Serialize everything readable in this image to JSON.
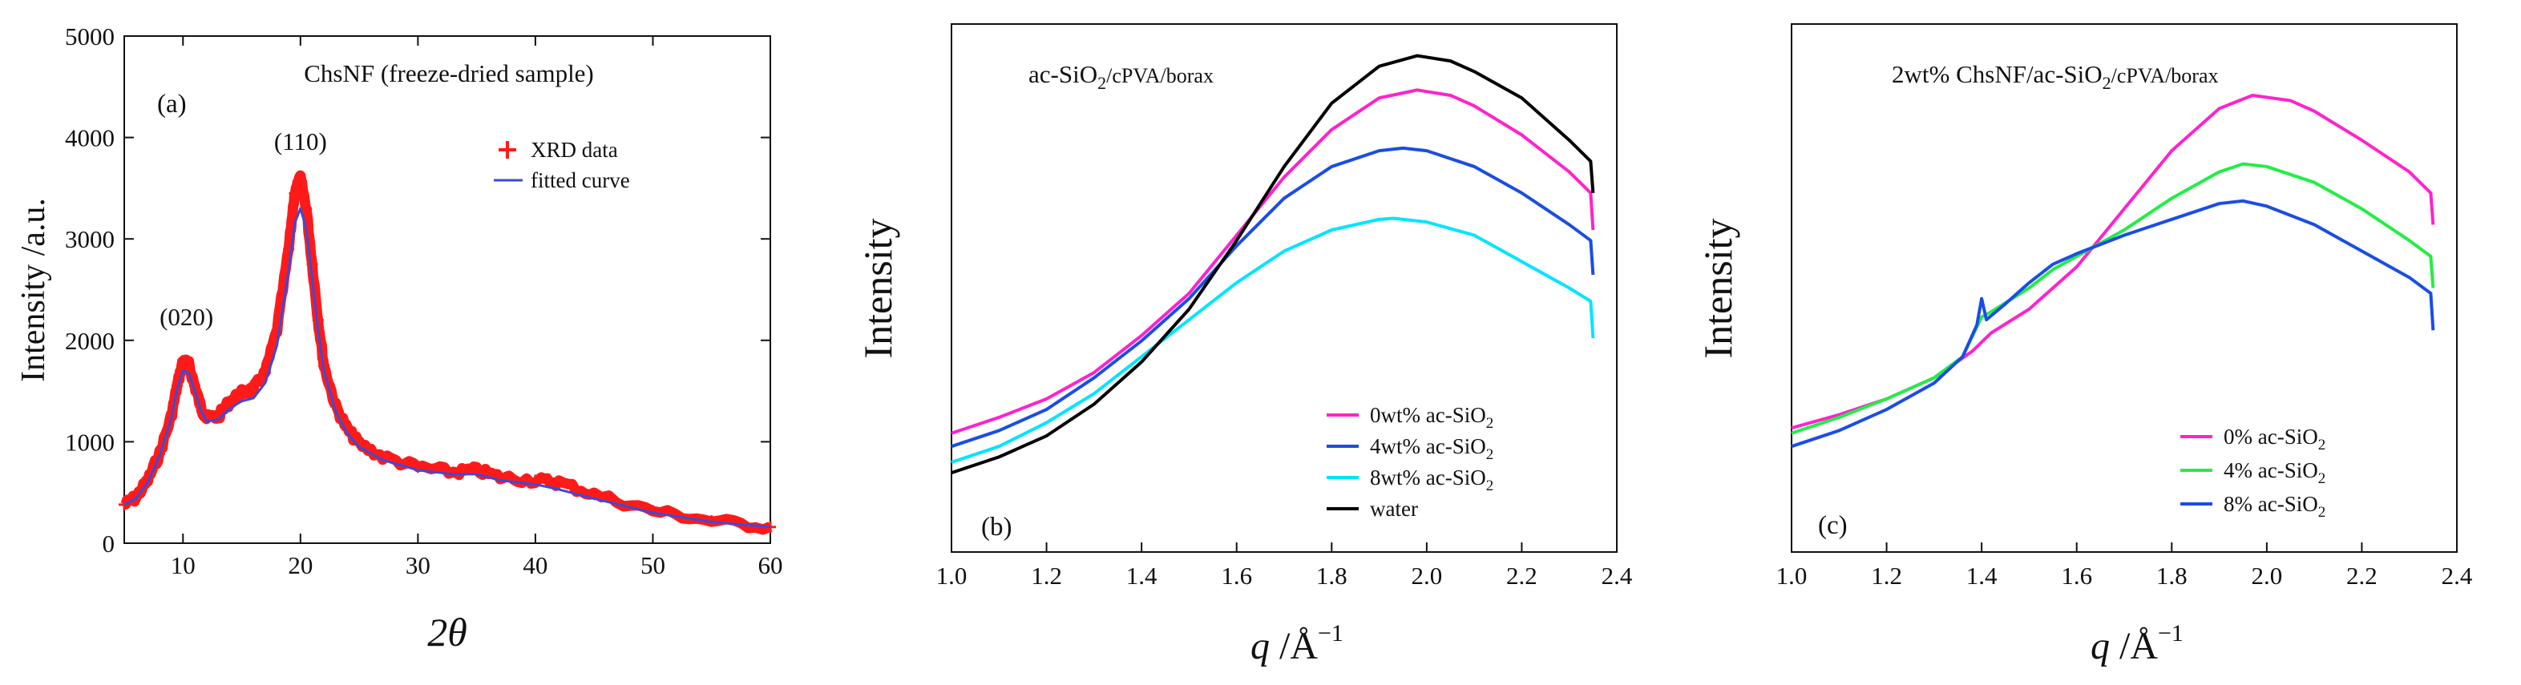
{
  "chart_data": [
    {
      "panel": "(a)",
      "type": "line",
      "title": "ChsNF (freeze-dried sample)",
      "xlabel_prefix": "2",
      "xlabel_symbol": "θ",
      "ylabel": "Intensity /a.u.",
      "xlim": [
        5,
        60
      ],
      "ylim": [
        0,
        5000
      ],
      "xticks": [
        10,
        20,
        30,
        40,
        50,
        60
      ],
      "xtick_labels": [
        "10",
        "20",
        "30",
        "40",
        "50",
        "60"
      ],
      "yticks": [
        0,
        1000,
        2000,
        3000,
        4000,
        5000
      ],
      "ytick_labels": [
        "0",
        "1000",
        "2000",
        "3000",
        "4000",
        "5000"
      ],
      "annotations": [
        {
          "text": "(020)",
          "x": 10.3,
          "y": 2150
        },
        {
          "text": "(110)",
          "x": 20.0,
          "y": 3880
        }
      ],
      "legend": {
        "position": "top-right",
        "entries": [
          "XRD data",
          "fitted curve"
        ]
      },
      "colors": {
        "data": "#ff1a1a",
        "fit": "#3b4bd6"
      },
      "series": [
        {
          "name": "XRD data",
          "marker": "+",
          "x": [
            5,
            6,
            7,
            8,
            9,
            9.5,
            10,
            10.5,
            11,
            11.5,
            12,
            13,
            14,
            15,
            16,
            17,
            18,
            19,
            19.5,
            20,
            20.5,
            21,
            21.5,
            22,
            23,
            24,
            25,
            27,
            30,
            33,
            35,
            37,
            40,
            42,
            45,
            50,
            55,
            60
          ],
          "y": [
            380,
            450,
            620,
            880,
            1250,
            1550,
            1800,
            1760,
            1550,
            1350,
            1230,
            1250,
            1400,
            1480,
            1520,
            1680,
            2100,
            2900,
            3450,
            3600,
            3300,
            2750,
            2200,
            1750,
            1350,
            1120,
            980,
            850,
            750,
            700,
            720,
            650,
            620,
            600,
            480,
            320,
            220,
            160
          ]
        },
        {
          "name": "fitted curve",
          "x": [
            5,
            6,
            7,
            8,
            9,
            9.5,
            10,
            10.5,
            11,
            11.5,
            12,
            13,
            14,
            15,
            16,
            17,
            18,
            19,
            19.5,
            20,
            20.5,
            21,
            21.5,
            22,
            23,
            24,
            25,
            27,
            30,
            33,
            35,
            37,
            40,
            42,
            45,
            50,
            55,
            60
          ],
          "y": [
            380,
            440,
            600,
            860,
            1230,
            1520,
            1700,
            1680,
            1500,
            1320,
            1200,
            1220,
            1330,
            1400,
            1430,
            1580,
            1950,
            2700,
            3150,
            3300,
            3100,
            2600,
            2100,
            1700,
            1300,
            1080,
            950,
            820,
            720,
            680,
            680,
            620,
            580,
            530,
            440,
            300,
            210,
            160
          ]
        }
      ]
    },
    {
      "panel": "(b)",
      "type": "line",
      "title_main": "ac-SiO",
      "title_sub": "2",
      "title_tail": "/cPVA/borax",
      "xlabel_q": "q",
      "xlabel_unit": " /Å",
      "xlabel_sup": "−1",
      "ylabel": "Intensity",
      "xlim": [
        1.0,
        2.4
      ],
      "xticks": [
        1.0,
        1.2,
        1.4,
        1.6,
        1.8,
        2.0,
        2.2,
        2.4
      ],
      "xtick_labels": [
        "1.0",
        "1.2",
        "1.4",
        "1.6",
        "1.8",
        "2.0",
        "2.2",
        "2.4"
      ],
      "legend": {
        "position": "bottom-right",
        "entries": [
          {
            "pre": "0wt% ac-SiO",
            "sub": "2"
          },
          {
            "pre": "4wt% ac-SiO",
            "sub": "2"
          },
          {
            "pre": "8wt% ac-SiO",
            "sub": "2"
          },
          {
            "pre": "water",
            "sub": ""
          }
        ]
      },
      "series": [
        {
          "name": "0wt% ac-SiO2",
          "color": "#ff22cc",
          "x": [
            1.0,
            1.1,
            1.2,
            1.3,
            1.4,
            1.5,
            1.6,
            1.7,
            1.8,
            1.9,
            1.98,
            2.05,
            2.1,
            2.2,
            2.3,
            2.345,
            2.35
          ],
          "y": [
            0.225,
            0.255,
            0.29,
            0.34,
            0.41,
            0.49,
            0.6,
            0.71,
            0.8,
            0.86,
            0.875,
            0.865,
            0.845,
            0.79,
            0.72,
            0.68,
            0.61
          ]
        },
        {
          "name": "4wt% ac-SiO2",
          "color": "#1a4de6",
          "x": [
            1.0,
            1.1,
            1.2,
            1.3,
            1.4,
            1.5,
            1.6,
            1.7,
            1.8,
            1.9,
            1.95,
            2.0,
            2.1,
            2.2,
            2.3,
            2.345,
            2.35
          ],
          "y": [
            0.2,
            0.23,
            0.27,
            0.33,
            0.4,
            0.48,
            0.58,
            0.67,
            0.73,
            0.76,
            0.765,
            0.76,
            0.73,
            0.68,
            0.62,
            0.59,
            0.525
          ]
        },
        {
          "name": "8wt% ac-SiO2",
          "color": "#00e5ff",
          "x": [
            1.0,
            1.1,
            1.2,
            1.3,
            1.4,
            1.5,
            1.6,
            1.7,
            1.8,
            1.9,
            1.93,
            2.0,
            2.1,
            2.2,
            2.3,
            2.345,
            2.35
          ],
          "y": [
            0.17,
            0.2,
            0.245,
            0.3,
            0.37,
            0.44,
            0.51,
            0.57,
            0.61,
            0.63,
            0.632,
            0.625,
            0.6,
            0.55,
            0.5,
            0.475,
            0.405
          ]
        },
        {
          "name": "water",
          "color": "#000000",
          "x": [
            1.0,
            1.1,
            1.2,
            1.3,
            1.4,
            1.5,
            1.6,
            1.7,
            1.8,
            1.9,
            1.98,
            2.05,
            2.1,
            2.2,
            2.3,
            2.345,
            2.35
          ],
          "y": [
            0.15,
            0.18,
            0.22,
            0.28,
            0.36,
            0.46,
            0.59,
            0.73,
            0.85,
            0.92,
            0.94,
            0.93,
            0.91,
            0.86,
            0.78,
            0.74,
            0.68
          ]
        }
      ]
    },
    {
      "panel": "(c)",
      "type": "line",
      "title_main": "2wt% ChsNF/ac-SiO",
      "title_sub": "2",
      "title_tail": "/cPVA/borax",
      "xlabel_q": "q",
      "xlabel_unit": " /Å",
      "xlabel_sup": "−1",
      "ylabel": "Intensity",
      "xlim": [
        1.0,
        2.4
      ],
      "xticks": [
        1.0,
        1.2,
        1.4,
        1.6,
        1.8,
        2.0,
        2.2,
        2.4
      ],
      "xtick_labels": [
        "1.0",
        "1.2",
        "1.4",
        "1.6",
        "1.8",
        "2.0",
        "2.2",
        "2.4"
      ],
      "legend": {
        "position": "bottom-right",
        "entries": [
          {
            "pre": "0% ac-SiO",
            "sub": "2"
          },
          {
            "pre": "4% ac-SiO",
            "sub": "2"
          },
          {
            "pre": "8% ac-SiO",
            "sub": "2"
          }
        ]
      },
      "series": [
        {
          "name": "0% ac-SiO2",
          "color": "#ff22cc",
          "x": [
            1.0,
            1.1,
            1.2,
            1.3,
            1.38,
            1.42,
            1.5,
            1.6,
            1.7,
            1.8,
            1.9,
            1.97,
            2.05,
            2.1,
            2.2,
            2.3,
            2.345,
            2.35
          ],
          "y": [
            0.235,
            0.26,
            0.29,
            0.33,
            0.38,
            0.415,
            0.46,
            0.54,
            0.65,
            0.76,
            0.84,
            0.865,
            0.855,
            0.835,
            0.78,
            0.72,
            0.68,
            0.62
          ]
        },
        {
          "name": "4% ac-SiO2",
          "color": "#22ee44",
          "x": [
            1.0,
            1.1,
            1.2,
            1.3,
            1.36,
            1.4,
            1.42,
            1.5,
            1.55,
            1.6,
            1.7,
            1.8,
            1.9,
            1.95,
            2.0,
            2.1,
            2.2,
            2.3,
            2.345,
            2.35
          ],
          "y": [
            0.225,
            0.255,
            0.29,
            0.33,
            0.37,
            0.445,
            0.455,
            0.5,
            0.535,
            0.56,
            0.61,
            0.67,
            0.72,
            0.735,
            0.73,
            0.7,
            0.65,
            0.59,
            0.56,
            0.5
          ]
        },
        {
          "name": "8% ac-SiO2",
          "color": "#1a4de6",
          "x": [
            1.0,
            1.1,
            1.2,
            1.3,
            1.36,
            1.39,
            1.4,
            1.41,
            1.45,
            1.5,
            1.55,
            1.6,
            1.7,
            1.8,
            1.9,
            1.95,
            2.0,
            2.1,
            2.2,
            2.3,
            2.345,
            2.35
          ],
          "y": [
            0.2,
            0.23,
            0.27,
            0.32,
            0.37,
            0.43,
            0.48,
            0.44,
            0.47,
            0.51,
            0.545,
            0.565,
            0.6,
            0.63,
            0.66,
            0.665,
            0.655,
            0.62,
            0.57,
            0.52,
            0.49,
            0.42
          ]
        }
      ]
    }
  ]
}
